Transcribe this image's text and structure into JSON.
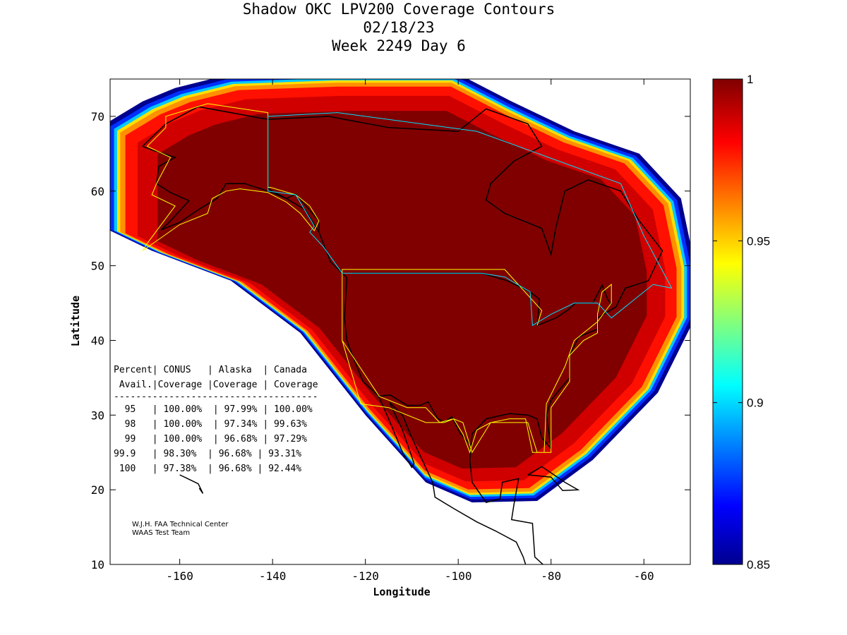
{
  "title": {
    "line1": "Shadow OKC LPV200 Coverage Contours",
    "line2": "02/18/23",
    "line3": "Week 2249 Day 6"
  },
  "chart_data": {
    "type": "heatmap",
    "xlabel": "Longitude",
    "ylabel": "Latitude",
    "xlim": [
      -175,
      -50
    ],
    "ylim": [
      10,
      75
    ],
    "xticks": [
      -160,
      -140,
      -120,
      -100,
      -80,
      -60
    ],
    "yticks": [
      10,
      20,
      30,
      40,
      50,
      60,
      70
    ],
    "colorbar": {
      "range": [
        0.85,
        1
      ],
      "ticks": [
        0.85,
        0.9,
        0.95,
        1
      ],
      "tick_labels": [
        "0.85",
        "0.9",
        "0.95",
        "1"
      ]
    },
    "coverage_outline": [
      [
        -176,
        69
      ],
      [
        -168,
        72
      ],
      [
        -161,
        73.8
      ],
      [
        -150,
        75.5
      ],
      [
        -127,
        76
      ],
      [
        -101,
        76
      ],
      [
        -88.5,
        72
      ],
      [
        -75,
        68
      ],
      [
        -61,
        65
      ],
      [
        -52,
        59
      ],
      [
        -49,
        50
      ],
      [
        -49,
        43
      ],
      [
        -57,
        33
      ],
      [
        -71,
        24
      ],
      [
        -83,
        18.5
      ],
      [
        -97,
        18.3
      ],
      [
        -107,
        21
      ],
      [
        -120,
        30
      ],
      [
        -134,
        41
      ],
      [
        -149,
        48
      ],
      [
        -166,
        52
      ],
      [
        -176,
        55
      ]
    ],
    "band_colors": [
      "#00008f",
      "#0030ff",
      "#00c8ff",
      "#ffe000",
      "#ff9000",
      "#ff1000",
      "#d00000",
      "#800000"
    ]
  },
  "table": {
    "header1": "Percent| CONUS   | Alaska  | Canada",
    "header2": " Avail.|Coverage |Coverage | Coverage",
    "divider": "-------------------------------------",
    "rows": [
      "  95   | 100.00%  | 97.99% | 100.00%",
      "  98   | 100.00%  | 97.34% | 99.63%",
      "  99   | 100.00%  | 96.68% | 97.29%",
      "99.9   | 98.30%  | 96.68% | 93.31%",
      " 100   | 97.38%  | 96.68% | 92.44%"
    ]
  },
  "credit": {
    "line1": "W.J.H. FAA Technical Center",
    "line2": "WAAS Test Team"
  }
}
